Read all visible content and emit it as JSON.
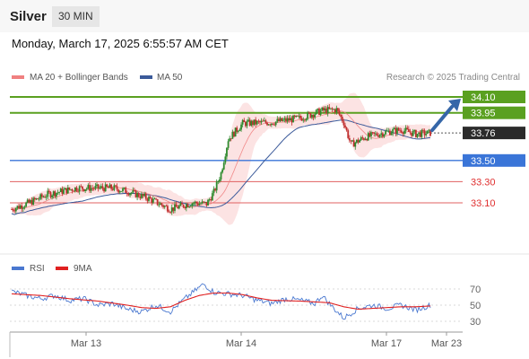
{
  "header": {
    "title": "Silver",
    "timeframe": "30 MIN"
  },
  "datetime": "Monday, March 17, 2025 6:55:57 AM CET",
  "legend": {
    "bb_label": "MA 20 + Bollinger Bands",
    "ma50_label": "MA 50",
    "credit": "Research © 2025 Trading Central",
    "rsi_label": "RSI",
    "rsi_ma_label": "9MA"
  },
  "colors": {
    "bb": "#f08080",
    "ma50": "#3b5a9a",
    "green": "#5aa020",
    "blue": "#3a75d8",
    "red": "#e06060",
    "up_candle": "#2e8b2e",
    "down_candle": "#c03030",
    "rsi": "#4a78d0",
    "rsi_ma": "#e02020",
    "current": "#2b2b2b",
    "arrow": "#3566a8"
  },
  "chart_data": [
    {
      "type": "candlestick",
      "name": "price",
      "x_tick_labels": [
        "Mar 13",
        "Mar 14",
        "Mar 17",
        "Mar 23"
      ],
      "ylim": [
        32.88,
        34.15
      ],
      "levels": [
        {
          "value": 34.1,
          "label": "34.10",
          "kind": "resistance"
        },
        {
          "value": 33.95,
          "label": "33.95",
          "kind": "resistance"
        },
        {
          "value": 33.76,
          "label": "33.76",
          "kind": "current"
        },
        {
          "value": 33.5,
          "label": "33.50",
          "kind": "pivot"
        },
        {
          "value": 33.3,
          "label": "33.30",
          "kind": "support"
        },
        {
          "value": 33.1,
          "label": "33.10",
          "kind": "support"
        }
      ],
      "arrow": {
        "from": 33.76,
        "to": 34.1,
        "direction": "up"
      },
      "path_anchors": [
        [
          0,
          33.04
        ],
        [
          12,
          33.1
        ],
        [
          25,
          33.18
        ],
        [
          45,
          33.24
        ],
        [
          70,
          33.24
        ],
        [
          80,
          33.21
        ],
        [
          95,
          33.14
        ],
        [
          110,
          33.04
        ],
        [
          125,
          33.1
        ],
        [
          135,
          33.09
        ],
        [
          140,
          33.2
        ],
        [
          145,
          33.38
        ],
        [
          150,
          33.7
        ],
        [
          160,
          33.85
        ],
        [
          180,
          33.86
        ],
        [
          200,
          33.9
        ],
        [
          215,
          33.97
        ],
        [
          225,
          33.98
        ],
        [
          230,
          33.86
        ],
        [
          235,
          33.65
        ],
        [
          245,
          33.72
        ],
        [
          260,
          33.77
        ],
        [
          270,
          33.79
        ],
        [
          280,
          33.75
        ],
        [
          290,
          33.76
        ]
      ]
    },
    {
      "type": "line",
      "name": "RSI",
      "yticks": [
        30,
        50,
        70
      ],
      "ylim": [
        20,
        80
      ],
      "series": [
        {
          "name": "RSI",
          "anchors": [
            [
              0,
              67
            ],
            [
              10,
              62
            ],
            [
              20,
              58
            ],
            [
              30,
              62
            ],
            [
              40,
              56
            ],
            [
              50,
              58
            ],
            [
              60,
              50
            ],
            [
              70,
              52
            ],
            [
              80,
              45
            ],
            [
              90,
              42
            ],
            [
              100,
              50
            ],
            [
              110,
              42
            ],
            [
              120,
              58
            ],
            [
              130,
              72
            ],
            [
              133,
              76
            ],
            [
              140,
              66
            ],
            [
              150,
              64
            ],
            [
              160,
              62
            ],
            [
              170,
              56
            ],
            [
              180,
              52
            ],
            [
              190,
              58
            ],
            [
              200,
              56
            ],
            [
              210,
              52
            ],
            [
              215,
              62
            ],
            [
              222,
              48
            ],
            [
              230,
              34
            ],
            [
              240,
              46
            ],
            [
              250,
              50
            ],
            [
              260,
              46
            ],
            [
              270,
              50
            ],
            [
              280,
              44
            ],
            [
              290,
              50
            ]
          ]
        },
        {
          "name": "9MA",
          "anchors": [
            [
              0,
              64
            ],
            [
              20,
              62
            ],
            [
              40,
              58
            ],
            [
              60,
              55
            ],
            [
              80,
              50
            ],
            [
              90,
              47
            ],
            [
              100,
              46
            ],
            [
              110,
              48
            ],
            [
              120,
              56
            ],
            [
              130,
              62
            ],
            [
              140,
              65
            ],
            [
              150,
              65
            ],
            [
              160,
              63
            ],
            [
              170,
              59
            ],
            [
              180,
              56
            ],
            [
              200,
              55
            ],
            [
              210,
              54
            ],
            [
              220,
              53
            ],
            [
              230,
              48
            ],
            [
              240,
              45
            ],
            [
              250,
              46
            ],
            [
              260,
              47
            ],
            [
              270,
              48
            ],
            [
              280,
              48
            ],
            [
              290,
              49
            ]
          ]
        }
      ]
    }
  ]
}
